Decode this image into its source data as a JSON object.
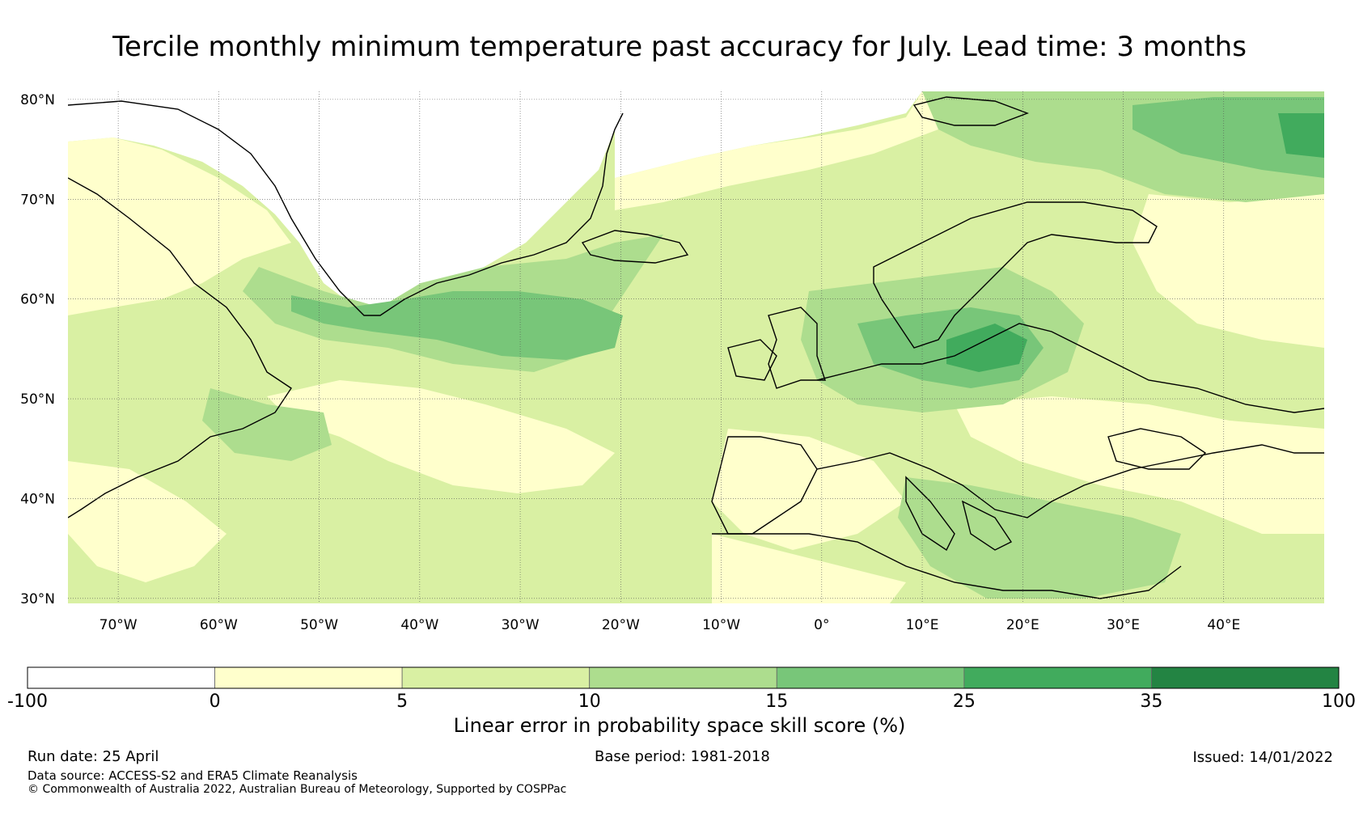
{
  "title": "Tercile monthly minimum temperature past accuracy for July. Lead time: 3 months",
  "map": {
    "lat_labels": [
      "80°N",
      "70°N",
      "60°N",
      "50°N",
      "40°N",
      "30°N"
    ],
    "lat_values": [
      80,
      70,
      60,
      50,
      40,
      30
    ],
    "lon_labels": [
      "70°W",
      "60°W",
      "50°W",
      "40°W",
      "30°W",
      "20°W",
      "10°W",
      "0°",
      "10°E",
      "20°E",
      "30°E",
      "40°E"
    ],
    "lon_values": [
      -70,
      -60,
      -50,
      -40,
      -30,
      -20,
      -10,
      0,
      10,
      20,
      30,
      40
    ],
    "lon_range": [
      -75,
      50
    ],
    "lat_range": [
      29.5,
      80.8
    ],
    "gridlines": "dotted"
  },
  "colorbar": {
    "tick_labels": [
      "-100",
      "0",
      "5",
      "10",
      "15",
      "25",
      "35",
      "100"
    ],
    "colors": [
      "#ffffff",
      "#ffffcc",
      "#d9f0a3",
      "#addd8e",
      "#78c679",
      "#41ab5d",
      "#238443"
    ],
    "label": "Linear error in probability space skill score (%)"
  },
  "footer": {
    "run_date": "Run date: 25 April",
    "base_period": "Base period: 1981-2018",
    "issued": "Issued: 14/01/2022",
    "data_source": "Data source: ACCESS-S2 and ERA5 Climate Reanalysis",
    "copyright": "© Commonwealth of Australia 2022, Australian Bureau of Meteorology, Supported by COSPPac"
  }
}
